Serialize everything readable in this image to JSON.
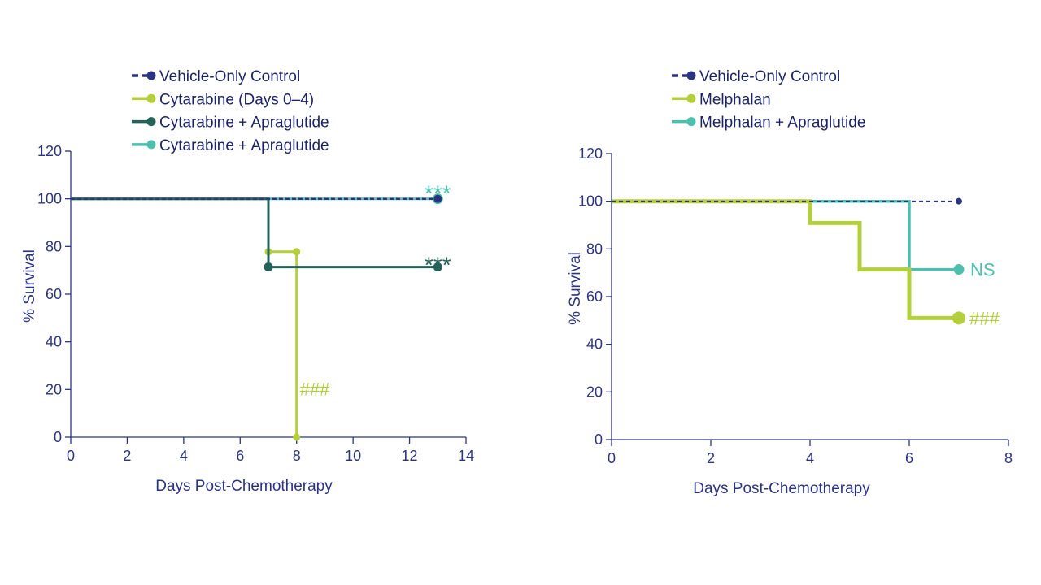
{
  "chart_data": [
    {
      "type": "line",
      "step": true,
      "xlabel": "Days Post-Chemotherapy",
      "ylabel": "% Survival",
      "xlim": [
        0,
        14
      ],
      "ylim": [
        0,
        120
      ],
      "xticks": [
        0,
        2,
        4,
        6,
        8,
        10,
        12,
        14
      ],
      "yticks": [
        0,
        20,
        40,
        60,
        80,
        100,
        120
      ],
      "grid": false,
      "legend_position": "top-left",
      "series": [
        {
          "name": "Vehicle-Only Control",
          "color": "#2b3483",
          "dashed": true,
          "x": [
            0,
            13
          ],
          "y": [
            100,
            100
          ],
          "markers": [
            [
              13,
              100
            ]
          ]
        },
        {
          "name": "Cytarabine (Days 0–4)",
          "color": "#b3cf3b",
          "dashed": false,
          "x": [
            0,
            7,
            7,
            8,
            8
          ],
          "y": [
            100,
            100,
            77.8,
            77.8,
            0
          ],
          "markers": [
            [
              7,
              77.8
            ],
            [
              8,
              77.8
            ],
            [
              8,
              0
            ]
          ]
        },
        {
          "name": "Cytarabine + Apraglutide",
          "color": "#23635a",
          "dashed": false,
          "x": [
            0,
            7,
            7,
            13
          ],
          "y": [
            100,
            100,
            71.4,
            71.4
          ],
          "markers": [
            [
              7,
              71.4
            ],
            [
              13,
              71.4
            ]
          ]
        },
        {
          "name": "Cytarabine + Apraglutide",
          "color": "#4fbfad",
          "dashed": false,
          "x": [
            0,
            13
          ],
          "y": [
            100,
            100
          ],
          "markers": [
            [
              13,
              100
            ]
          ]
        }
      ],
      "annotations": [
        {
          "text": "***",
          "x": 13,
          "y": 100,
          "color": "#4fbfad"
        },
        {
          "text": "***",
          "x": 13,
          "y": 71.4,
          "color": "#23635a"
        },
        {
          "text": "###",
          "x": 8,
          "y": 20,
          "color": "#b3cf3b"
        }
      ]
    },
    {
      "type": "line",
      "step": true,
      "xlabel": "Days Post-Chemotherapy",
      "ylabel": "% Survival",
      "xlim": [
        0,
        8
      ],
      "ylim": [
        0,
        120
      ],
      "xticks": [
        0,
        2,
        4,
        6,
        8
      ],
      "yticks": [
        0,
        20,
        40,
        60,
        80,
        100,
        120
      ],
      "grid": false,
      "legend_position": "top-left",
      "series": [
        {
          "name": "Vehicle-Only Control",
          "color": "#2b3483",
          "dashed": true,
          "x": [
            0,
            7
          ],
          "y": [
            100,
            100
          ],
          "markers": [
            [
              7,
              100
            ]
          ]
        },
        {
          "name": "Melphalan",
          "color": "#b3cf3b",
          "dashed": false,
          "x": [
            0,
            4,
            4,
            5,
            5,
            6,
            6,
            7
          ],
          "y": [
            100,
            100,
            90.9,
            90.9,
            71.4,
            71.4,
            51,
            51
          ],
          "markers": [
            [
              7,
              51
            ]
          ]
        },
        {
          "name": "Melphalan  + Apraglutide",
          "color": "#4fbfad",
          "dashed": false,
          "x": [
            0,
            6,
            6,
            7
          ],
          "y": [
            100,
            100,
            71.4,
            71.4
          ],
          "markers": [
            [
              7,
              71.4
            ]
          ]
        }
      ],
      "annotations": [
        {
          "text": "NS",
          "x": 7,
          "y": 71.4,
          "color": "#4fbfad"
        },
        {
          "text": "###",
          "x": 7,
          "y": 51,
          "color": "#b3cf3b"
        }
      ]
    }
  ]
}
